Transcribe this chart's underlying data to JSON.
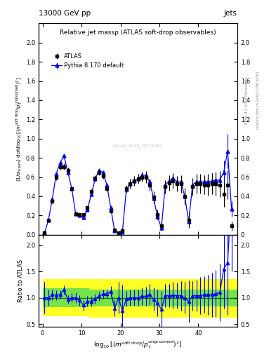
{
  "title_left": "13000 GeV pp",
  "title_right": "Jets",
  "plot_title": "Relative jet massρ (ATLAS soft-drop observables)",
  "ylabel_main": "(1/σ_{resum}) dσ/d log_{10}[(m^{soft drop}/p_T^{ungroomed})^2]",
  "ylabel_ratio": "Ratio to ATLAS",
  "atlas_label": "ATLAS",
  "mc_label": "Pythia 8.170 default",
  "watermark": "ATLAS_2019_I1772062",
  "ref_label": "Rivet 3.1.10, 300k events",
  "ref_label2": "mcplots.cern.ch [arXiv:1306.3436]",
  "xlim": [
    -1,
    50
  ],
  "ylim_main": [
    0,
    2.2
  ],
  "ylim_ratio": [
    0.45,
    2.2
  ],
  "atlas_x": [
    0.5,
    1.5,
    2.5,
    3.5,
    4.5,
    5.5,
    6.5,
    7.5,
    8.5,
    9.5,
    10.5,
    11.5,
    12.5,
    13.5,
    14.5,
    15.5,
    16.5,
    17.5,
    18.5,
    19.5,
    20.5,
    21.5,
    22.5,
    23.5,
    24.5,
    25.5,
    26.5,
    27.5,
    28.5,
    29.5,
    30.5,
    31.5,
    32.5,
    33.5,
    34.5,
    35.5,
    36.5,
    37.5,
    38.5,
    39.5,
    40.5,
    41.5,
    42.5,
    43.5,
    44.5,
    45.5,
    46.5,
    47.5,
    48.5
  ],
  "atlas_y": [
    0.02,
    0.15,
    0.35,
    0.6,
    0.71,
    0.71,
    0.67,
    0.48,
    0.22,
    0.21,
    0.21,
    0.28,
    0.45,
    0.59,
    0.65,
    0.61,
    0.48,
    0.25,
    0.05,
    0.02,
    0.04,
    0.48,
    0.53,
    0.56,
    0.58,
    0.6,
    0.6,
    0.52,
    0.39,
    0.21,
    0.09,
    0.5,
    0.54,
    0.56,
    0.53,
    0.53,
    0.4,
    0.15,
    0.5,
    0.53,
    0.53,
    0.52,
    0.52,
    0.53,
    0.53,
    0.52,
    0.42,
    0.52,
    0.09
  ],
  "atlas_yerr": [
    0.005,
    0.01,
    0.02,
    0.03,
    0.03,
    0.03,
    0.03,
    0.02,
    0.015,
    0.015,
    0.015,
    0.02,
    0.025,
    0.03,
    0.03,
    0.03,
    0.025,
    0.02,
    0.01,
    0.005,
    0.01,
    0.04,
    0.05,
    0.05,
    0.05,
    0.05,
    0.06,
    0.06,
    0.06,
    0.05,
    0.05,
    0.07,
    0.08,
    0.08,
    0.08,
    0.09,
    0.09,
    0.08,
    0.09,
    0.1,
    0.1,
    0.1,
    0.11,
    0.11,
    0.12,
    0.13,
    0.13,
    0.15,
    0.05
  ],
  "mc_x": [
    0.5,
    1.5,
    2.5,
    3.5,
    4.5,
    5.5,
    6.5,
    7.5,
    8.5,
    9.5,
    10.5,
    11.5,
    12.5,
    13.5,
    14.5,
    15.5,
    16.5,
    17.5,
    18.5,
    19.5,
    20.5,
    21.5,
    22.5,
    23.5,
    24.5,
    25.5,
    26.5,
    27.5,
    28.5,
    29.5,
    30.5,
    31.5,
    32.5,
    33.5,
    34.5,
    35.5,
    36.5,
    37.5,
    38.5,
    39.5,
    40.5,
    41.5,
    42.5,
    43.5,
    44.5,
    45.5,
    46.5,
    47.5,
    48.5
  ],
  "mc_y": [
    0.02,
    0.15,
    0.37,
    0.63,
    0.75,
    0.82,
    0.65,
    0.48,
    0.22,
    0.2,
    0.18,
    0.26,
    0.42,
    0.58,
    0.67,
    0.65,
    0.52,
    0.28,
    0.04,
    0.02,
    0.03,
    0.47,
    0.53,
    0.56,
    0.58,
    0.62,
    0.62,
    0.55,
    0.38,
    0.19,
    0.07,
    0.52,
    0.56,
    0.59,
    0.55,
    0.55,
    0.4,
    0.14,
    0.52,
    0.55,
    0.55,
    0.55,
    0.55,
    0.56,
    0.57,
    0.57,
    0.65,
    0.87,
    0.27
  ],
  "mc_yerr": [
    0.003,
    0.007,
    0.012,
    0.018,
    0.02,
    0.022,
    0.018,
    0.015,
    0.008,
    0.008,
    0.008,
    0.01,
    0.015,
    0.02,
    0.02,
    0.02,
    0.016,
    0.012,
    0.006,
    0.003,
    0.005,
    0.025,
    0.03,
    0.03,
    0.03,
    0.035,
    0.035,
    0.035,
    0.03,
    0.025,
    0.02,
    0.04,
    0.045,
    0.05,
    0.05,
    0.055,
    0.055,
    0.05,
    0.06,
    0.065,
    0.07,
    0.07,
    0.075,
    0.08,
    0.085,
    0.09,
    0.12,
    0.18,
    0.08
  ],
  "ratio_x": [
    0.5,
    1.5,
    2.5,
    3.5,
    4.5,
    5.5,
    6.5,
    7.5,
    8.5,
    9.5,
    10.5,
    11.5,
    12.5,
    13.5,
    14.5,
    15.5,
    16.5,
    17.5,
    18.5,
    19.5,
    20.5,
    21.5,
    22.5,
    23.5,
    24.5,
    25.5,
    26.5,
    27.5,
    28.5,
    29.5,
    30.5,
    31.5,
    32.5,
    33.5,
    34.5,
    35.5,
    36.5,
    37.5,
    38.5,
    39.5,
    40.5,
    41.5,
    42.5,
    43.5,
    44.5,
    45.5,
    46.5,
    47.5,
    48.5
  ],
  "ratio_y": [
    1.0,
    1.0,
    1.06,
    1.05,
    1.06,
    1.15,
    0.97,
    1.0,
    1.0,
    0.95,
    0.86,
    0.93,
    0.93,
    0.98,
    1.03,
    1.07,
    1.08,
    1.12,
    0.8,
    1.0,
    0.75,
    0.98,
    1.0,
    1.0,
    1.0,
    1.03,
    1.03,
    1.06,
    0.97,
    0.9,
    0.78,
    1.04,
    1.04,
    1.05,
    1.04,
    1.04,
    1.0,
    0.93,
    1.04,
    1.04,
    1.04,
    1.06,
    1.06,
    1.06,
    1.08,
    1.1,
    1.55,
    1.67,
    3.0
  ],
  "ratio_yerr": [
    0.3,
    0.15,
    0.1,
    0.09,
    0.08,
    0.09,
    0.08,
    0.09,
    0.1,
    0.1,
    0.1,
    0.1,
    0.09,
    0.09,
    0.09,
    0.09,
    0.08,
    0.1,
    0.15,
    0.3,
    0.5,
    0.15,
    0.15,
    0.15,
    0.15,
    0.17,
    0.18,
    0.2,
    0.22,
    0.25,
    0.35,
    0.22,
    0.22,
    0.25,
    0.25,
    0.28,
    0.3,
    0.4,
    0.28,
    0.3,
    0.35,
    0.35,
    0.38,
    0.42,
    0.45,
    0.55,
    0.75,
    1.0,
    1.5
  ],
  "band_yellow_edges": [
    0,
    3,
    3,
    12,
    12,
    21,
    21,
    50
  ],
  "band_yellow_hi": [
    1.35,
    1.35,
    1.35,
    1.35,
    1.25,
    1.25,
    1.15,
    1.15
  ],
  "band_yellow_lo": [
    0.65,
    0.65,
    0.62,
    0.62,
    0.72,
    0.72,
    0.82,
    0.82
  ],
  "band_green_edges": [
    0,
    3,
    3,
    12,
    12,
    21,
    21,
    50
  ],
  "band_green_hi": [
    1.18,
    1.18,
    1.15,
    1.15,
    1.1,
    1.1,
    1.07,
    1.07
  ],
  "band_green_lo": [
    0.82,
    0.82,
    0.83,
    0.83,
    0.88,
    0.88,
    0.93,
    0.93
  ],
  "xticks": [
    0,
    10,
    20,
    30,
    40
  ],
  "yticks_main": [
    0,
    0.2,
    0.4,
    0.6,
    0.8,
    1.0,
    1.2,
    1.4,
    1.6,
    1.8,
    2.0
  ],
  "yticks_ratio": [
    0.5,
    1.0,
    1.5,
    2.0
  ],
  "colors": {
    "atlas": "black",
    "mc": "blue",
    "band_yellow": "#ffff00",
    "band_green": "#55dd55",
    "ratio_line": "green"
  }
}
